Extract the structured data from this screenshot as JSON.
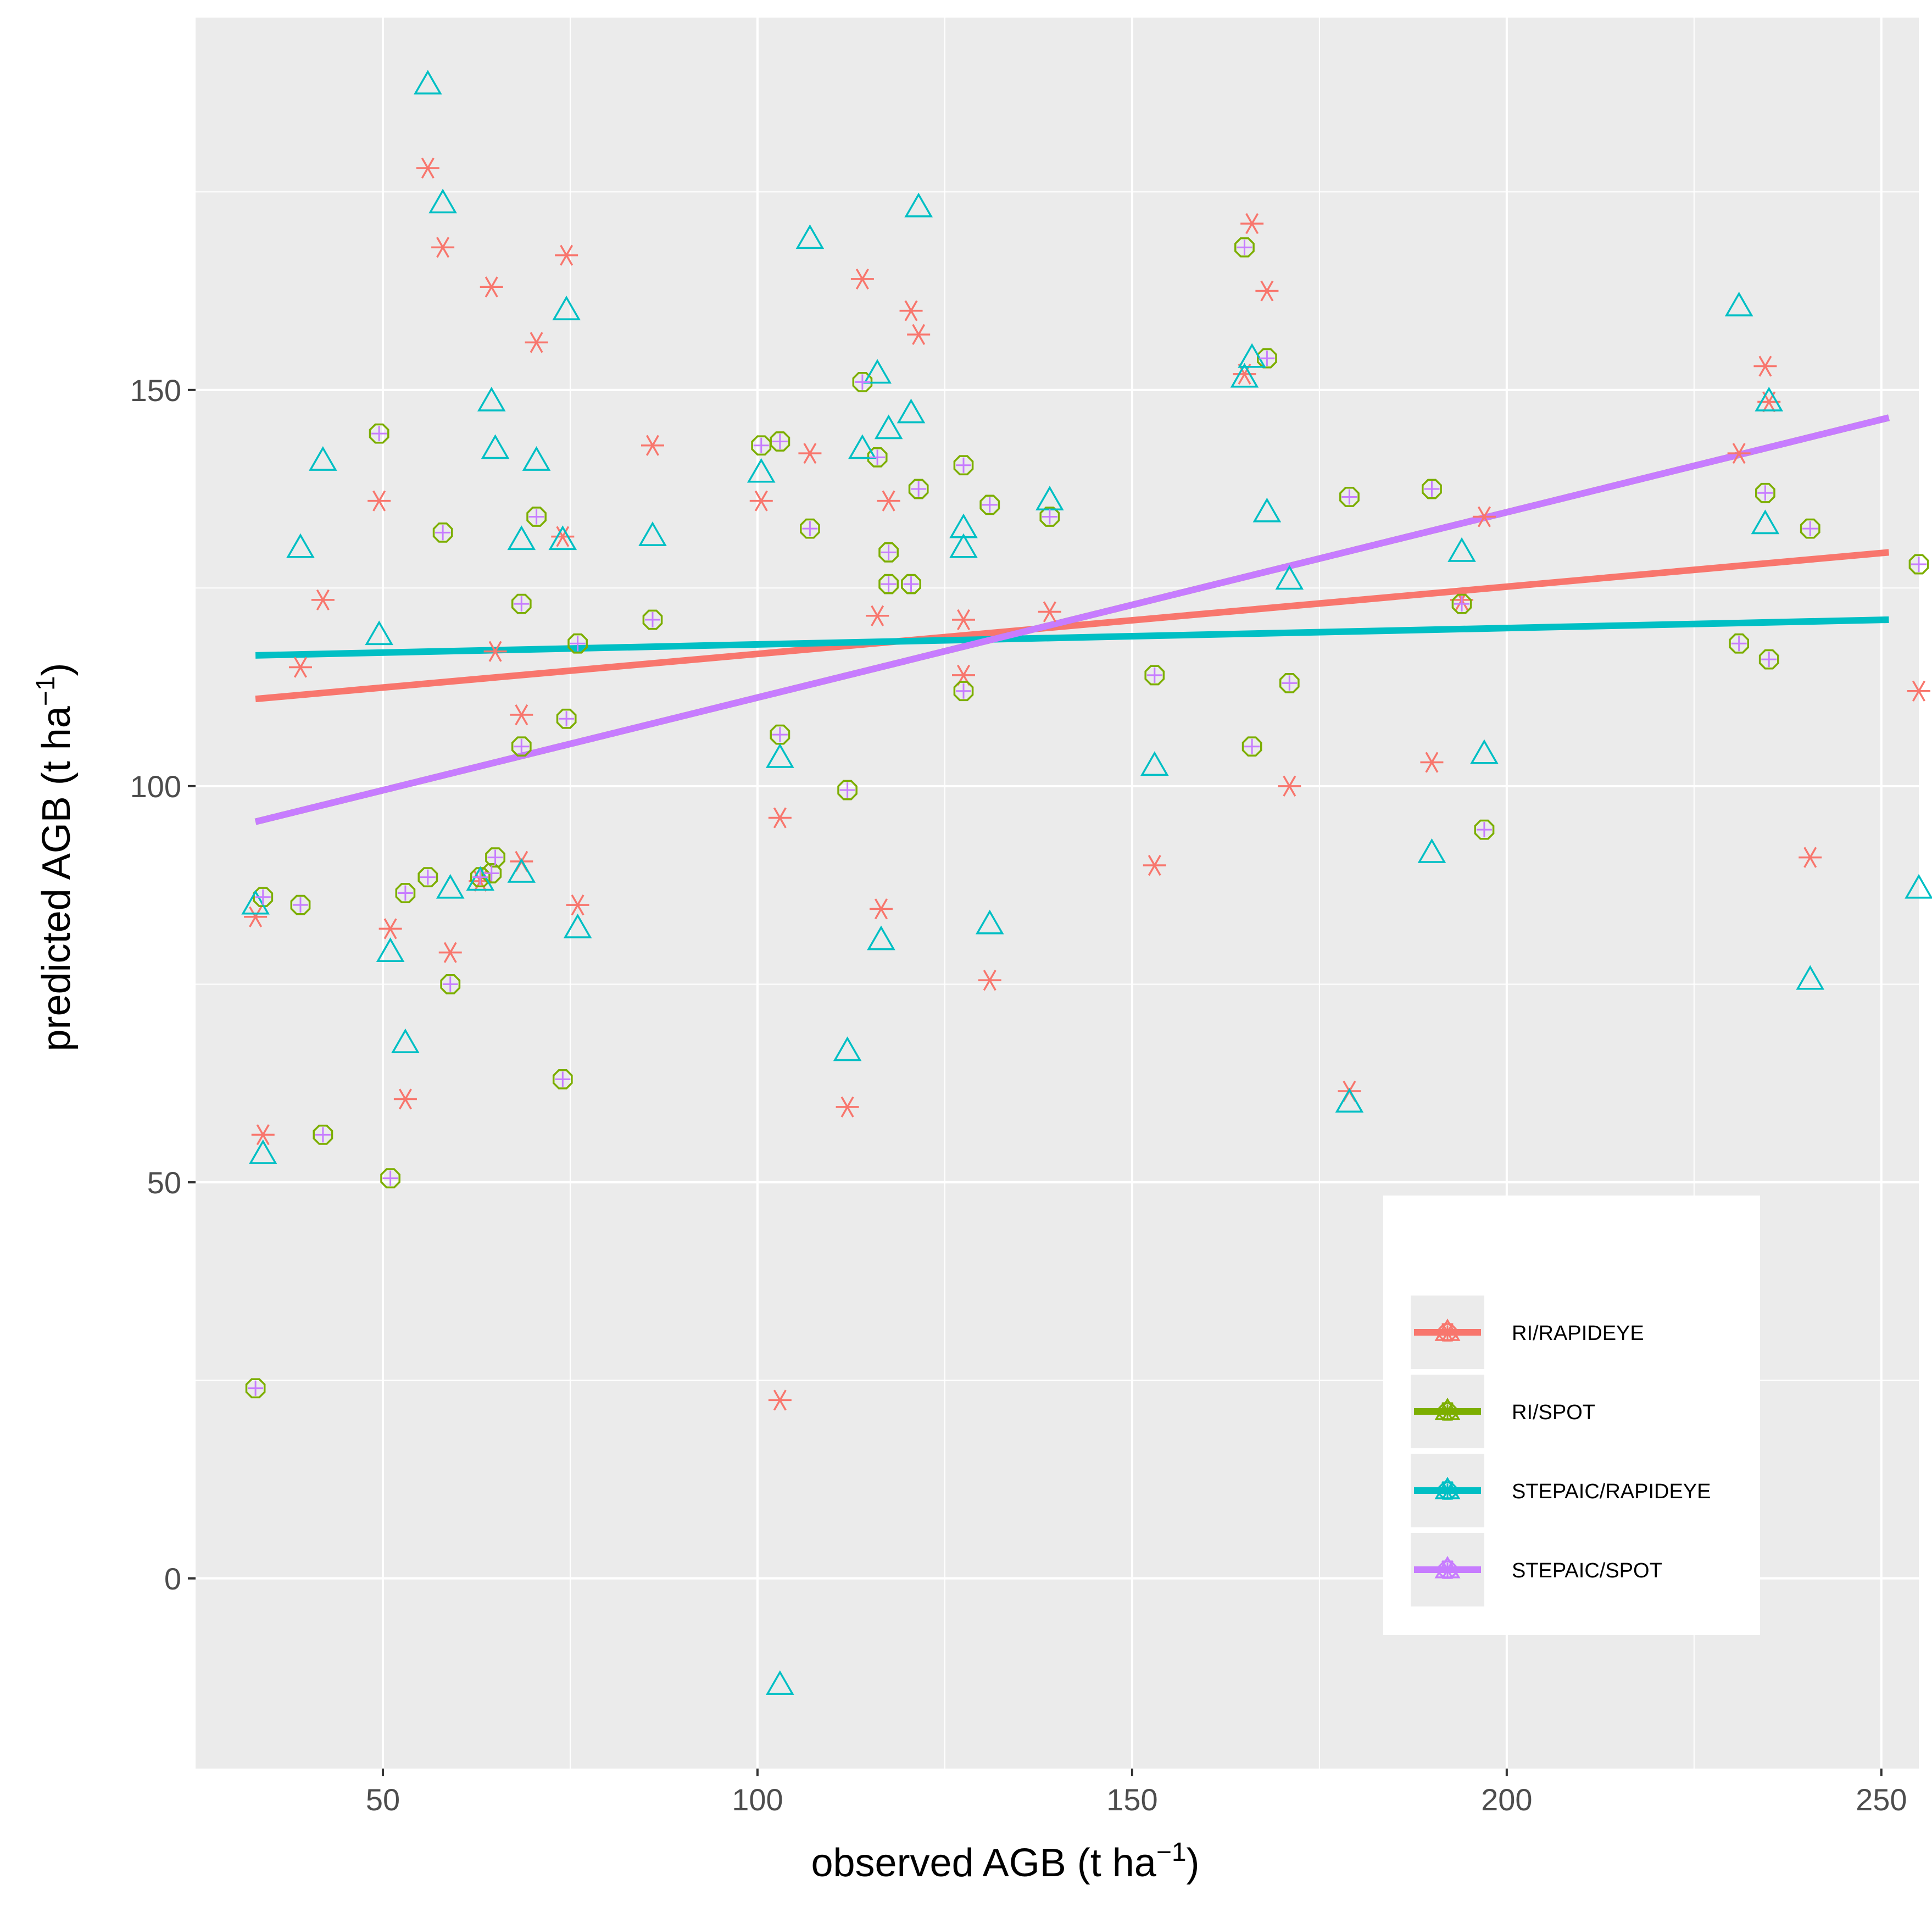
{
  "chart_data": {
    "type": "scatter",
    "title": "",
    "xlabel": "observed AGB (t ha",
    "xlabel_sup": "−1",
    "xlabel_end": ")",
    "ylabel": "predicted AGB (t ha",
    "ylabel_sup": "−1",
    "ylabel_end": ")",
    "xlim": [
      25,
      255
    ],
    "ylim": [
      -24,
      197
    ],
    "x_ticks": [
      50,
      100,
      150,
      200,
      250
    ],
    "x_tick_labels": [
      "50",
      "100",
      "150",
      "200",
      "250"
    ],
    "y_ticks": [
      0,
      50,
      100,
      150
    ],
    "y_tick_labels": [
      "0",
      "50",
      "100",
      "150"
    ],
    "grid": true,
    "legend_position": "bottom-right",
    "background": "#ebebeb",
    "grid_color": "#ffffff",
    "series": [
      {
        "name": "RI/RAPIDEYE",
        "color": "#f8766d",
        "marker": "asterisk",
        "fit": {
          "x": [
            33,
            251
          ],
          "y": [
            111,
            129.5
          ]
        },
        "points": [
          [
            33,
            83.5
          ],
          [
            34,
            56
          ],
          [
            39,
            115
          ],
          [
            42,
            123.5
          ],
          [
            49.5,
            136
          ],
          [
            51,
            82
          ],
          [
            53,
            60.5
          ],
          [
            56,
            178
          ],
          [
            58,
            168
          ],
          [
            59,
            79
          ],
          [
            63,
            88
          ],
          [
            64.5,
            163
          ],
          [
            65,
            117
          ],
          [
            68.5,
            109
          ],
          [
            68.5,
            90.5
          ],
          [
            70.5,
            156
          ],
          [
            74,
            131.5
          ],
          [
            74.5,
            167
          ],
          [
            76,
            85
          ],
          [
            86,
            143
          ],
          [
            100.5,
            136
          ],
          [
            103,
            96
          ],
          [
            103,
            22.5
          ],
          [
            107,
            142
          ],
          [
            112,
            59.5
          ],
          [
            114,
            164
          ],
          [
            116,
            121.5
          ],
          [
            116.5,
            84.5
          ],
          [
            117.5,
            136
          ],
          [
            120.5,
            160
          ],
          [
            121.5,
            157
          ],
          [
            127.5,
            121
          ],
          [
            127.5,
            114
          ],
          [
            131,
            75.5
          ],
          [
            139,
            122
          ],
          [
            153,
            90
          ],
          [
            165,
            152
          ],
          [
            166,
            171
          ],
          [
            168,
            162.5
          ],
          [
            171,
            100
          ],
          [
            179,
            61.5
          ],
          [
            190,
            103
          ],
          [
            194,
            123.5
          ],
          [
            197,
            134
          ],
          [
            231,
            142
          ],
          [
            234.5,
            153
          ],
          [
            235,
            148.5
          ],
          [
            240.5,
            91
          ],
          [
            255,
            112
          ]
        ]
      },
      {
        "name": "RI/SPOT",
        "color": "#7cae00",
        "marker": "octagon",
        "fit": {
          "x": [
            33,
            251
          ],
          "y": [
            95.5,
            146.5
          ]
        },
        "points": [
          [
            33,
            24
          ],
          [
            34,
            86
          ],
          [
            39,
            85
          ],
          [
            42,
            56
          ],
          [
            49.5,
            144.5
          ],
          [
            51,
            50.5
          ],
          [
            53,
            86.5
          ],
          [
            56,
            88.5
          ],
          [
            58,
            132
          ],
          [
            59,
            75
          ],
          [
            63,
            88.5
          ],
          [
            64.5,
            89
          ],
          [
            65,
            91
          ],
          [
            68.5,
            123
          ],
          [
            68.5,
            105
          ],
          [
            70.5,
            134
          ],
          [
            74,
            63
          ],
          [
            74.5,
            108.5
          ],
          [
            76,
            118
          ],
          [
            86,
            121
          ],
          [
            100.5,
            143
          ],
          [
            103,
            143.5
          ],
          [
            103,
            106.5
          ],
          [
            107,
            132.5
          ],
          [
            112,
            99.5
          ],
          [
            114,
            151
          ],
          [
            116,
            141.5
          ],
          [
            117.5,
            129.5
          ],
          [
            117.5,
            125.5
          ],
          [
            120.5,
            125.5
          ],
          [
            121.5,
            137.5
          ],
          [
            127.5,
            140.5
          ],
          [
            127.5,
            112
          ],
          [
            131,
            135.5
          ],
          [
            139,
            134
          ],
          [
            153,
            114
          ],
          [
            165,
            168
          ],
          [
            166,
            105
          ],
          [
            168,
            154
          ],
          [
            171,
            113
          ],
          [
            179,
            136.5
          ],
          [
            190,
            137.5
          ],
          [
            194,
            123
          ],
          [
            197,
            94.5
          ],
          [
            231,
            118
          ],
          [
            234.5,
            137
          ],
          [
            235,
            116
          ],
          [
            240.5,
            132.5
          ],
          [
            255,
            128
          ]
        ]
      },
      {
        "name": "STEPAIC/RAPIDEYE",
        "color": "#00bfc4",
        "marker": "triangle",
        "fit": {
          "x": [
            33,
            251
          ],
          "y": [
            116.5,
            121
          ]
        },
        "points": [
          [
            33,
            85
          ],
          [
            34,
            53.5
          ],
          [
            39,
            130
          ],
          [
            42,
            141
          ],
          [
            49.5,
            119
          ],
          [
            51,
            79
          ],
          [
            53,
            67.5
          ],
          [
            56,
            188.5
          ],
          [
            58,
            173.5
          ],
          [
            59,
            87
          ],
          [
            63,
            88
          ],
          [
            64.5,
            148.5
          ],
          [
            65,
            142.5
          ],
          [
            68.5,
            131
          ],
          [
            68.5,
            89
          ],
          [
            70.5,
            141
          ],
          [
            74,
            131
          ],
          [
            74.5,
            160
          ],
          [
            76,
            82
          ],
          [
            86,
            131.5
          ],
          [
            100.5,
            139.5
          ],
          [
            103,
            103.5
          ],
          [
            103,
            -13.5
          ],
          [
            107,
            169
          ],
          [
            112,
            66.5
          ],
          [
            114,
            142.5
          ],
          [
            116,
            152
          ],
          [
            116.5,
            80.5
          ],
          [
            117.5,
            145
          ],
          [
            120.5,
            147
          ],
          [
            121.5,
            173
          ],
          [
            127.5,
            132.5
          ],
          [
            127.5,
            130
          ],
          [
            131,
            82.5
          ],
          [
            139,
            136
          ],
          [
            153,
            102.5
          ],
          [
            165,
            151.5
          ],
          [
            166,
            154
          ],
          [
            168,
            134.5
          ],
          [
            171,
            126
          ],
          [
            179,
            60
          ],
          [
            190,
            91.5
          ],
          [
            194,
            129.5
          ],
          [
            197,
            104
          ],
          [
            231,
            160.5
          ],
          [
            234.5,
            133
          ],
          [
            235,
            148.5
          ],
          [
            240.5,
            75.5
          ],
          [
            255,
            87
          ]
        ]
      },
      {
        "name": "STEPAIC/SPOT",
        "color": "#c77cff",
        "marker": "plus",
        "fit": {
          "x": [
            33,
            251
          ],
          "y": [
            95.5,
            146.5
          ]
        },
        "points": [
          [
            33,
            24
          ],
          [
            34,
            86
          ],
          [
            39,
            85
          ],
          [
            42,
            56
          ],
          [
            49.5,
            144.5
          ],
          [
            51,
            50.5
          ],
          [
            53,
            86.5
          ],
          [
            56,
            88.5
          ],
          [
            58,
            132
          ],
          [
            59,
            75
          ],
          [
            63,
            88.5
          ],
          [
            64.5,
            89
          ],
          [
            65,
            91
          ],
          [
            68.5,
            123
          ],
          [
            68.5,
            105
          ],
          [
            70.5,
            134
          ],
          [
            74,
            63
          ],
          [
            74.5,
            108.5
          ],
          [
            76,
            118
          ],
          [
            86,
            121
          ],
          [
            100.5,
            143
          ],
          [
            103,
            143.5
          ],
          [
            103,
            106.5
          ],
          [
            107,
            132.5
          ],
          [
            112,
            99.5
          ],
          [
            114,
            151
          ],
          [
            116,
            141.5
          ],
          [
            117.5,
            129.5
          ],
          [
            117.5,
            125.5
          ],
          [
            120.5,
            125.5
          ],
          [
            121.5,
            137.5
          ],
          [
            127.5,
            140.5
          ],
          [
            127.5,
            112
          ],
          [
            131,
            135.5
          ],
          [
            139,
            134
          ],
          [
            153,
            114
          ],
          [
            165,
            168
          ],
          [
            166,
            105
          ],
          [
            168,
            154
          ],
          [
            171,
            113
          ],
          [
            179,
            136.5
          ],
          [
            190,
            137.5
          ],
          [
            194,
            123
          ],
          [
            197,
            94.5
          ],
          [
            231,
            118
          ],
          [
            234.5,
            137
          ],
          [
            235,
            116
          ],
          [
            240.5,
            132.5
          ],
          [
            255,
            128
          ]
        ]
      }
    ]
  }
}
